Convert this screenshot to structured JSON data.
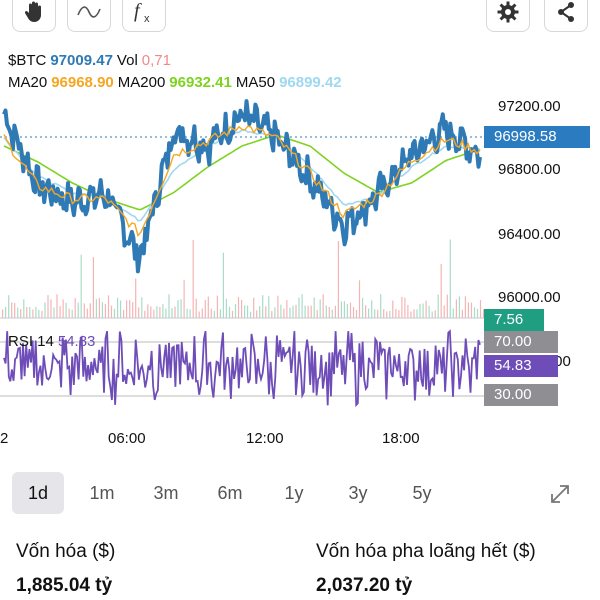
{
  "toolbar": {
    "left_icons": [
      "hand-pointer-icon",
      "curve-icon",
      "function-icon"
    ],
    "right_icons": [
      "gear-icon",
      "share-icon"
    ]
  },
  "legend": {
    "symbol": "$BTC",
    "price": "97009.47",
    "vol_label": "Vol",
    "vol_value": "0,71",
    "ma20_label": "MA20",
    "ma20_value": "96968.90",
    "ma200_label": "MA200",
    "ma200_value": "96932.41",
    "ma50_label": "MA50",
    "ma50_value": "96899.42",
    "rsi_label": "RSI 14",
    "rsi_value": "54.83"
  },
  "colors": {
    "price_line": "#2f7ab5",
    "ma20": "#f5a623",
    "ma200": "#7ed321",
    "ma50": "#9fd8f0",
    "vol": "#f08a8a",
    "rsi": "#6e4db8",
    "current_tag": "#2a7bbf",
    "vol_tag": "#1f9e82",
    "rsi_tag": "#6e4db8",
    "level_tag": "#8e8e93"
  },
  "price_axis": {
    "ticks": [
      "97200.00",
      "96800.00",
      "96400.00",
      "96000.00"
    ],
    "current_price": "96998.58",
    "current_vol": "7.56",
    "rsi_ticks": [
      "70.00",
      "30.00"
    ],
    "rsi_current": "54.83",
    "rsi_mid_tick_fragment": ".00"
  },
  "time_axis": [
    "2",
    "06:00",
    "12:00",
    "18:00"
  ],
  "ranges": {
    "items": [
      "1d",
      "1m",
      "3m",
      "6m",
      "1y",
      "3y",
      "5y"
    ],
    "active": "1d",
    "expand_icon": "expand-icon"
  },
  "stats": {
    "market_cap_label": "Vốn hóa ($)",
    "market_cap_value": "1,885.04 tỷ",
    "fdv_label": "Vốn hóa pha loãng hết ($)",
    "fdv_value": "2,037.20 tỷ"
  },
  "chart_data": {
    "type": "line",
    "title": "",
    "xlabel": "",
    "ylabel": "",
    "ylim": [
      96000,
      97200
    ],
    "x_ticks": [
      "06:00",
      "12:00",
      "18:00"
    ],
    "price_key_points": [
      {
        "t": "00:00",
        "v": 97150
      },
      {
        "t": "01:30",
        "v": 96700
      },
      {
        "t": "03:00",
        "v": 96600
      },
      {
        "t": "04:30",
        "v": 96650
      },
      {
        "t": "06:00",
        "v": 96250
      },
      {
        "t": "07:30",
        "v": 97050
      },
      {
        "t": "09:00",
        "v": 96950
      },
      {
        "t": "10:30",
        "v": 97150
      },
      {
        "t": "12:00",
        "v": 97000
      },
      {
        "t": "13:30",
        "v": 96750
      },
      {
        "t": "15:00",
        "v": 96450
      },
      {
        "t": "16:30",
        "v": 96650
      },
      {
        "t": "18:00",
        "v": 96900
      },
      {
        "t": "19:30",
        "v": 97050
      },
      {
        "t": "21:00",
        "v": 96900
      }
    ],
    "ma20_approx": [
      97000,
      96700,
      96620,
      96620,
      96400,
      96900,
      96980,
      97080,
      97000,
      96780,
      96520,
      96640,
      96860,
      96990,
      96920
    ],
    "ma50_approx": [
      97000,
      96760,
      96660,
      96630,
      96480,
      96800,
      96950,
      97050,
      97010,
      96820,
      96580,
      96640,
      96820,
      96950,
      96930
    ],
    "ma200_approx": [
      96950,
      96850,
      96720,
      96620,
      96550,
      96660,
      96820,
      96950,
      97020,
      96950,
      96780,
      96660,
      96720,
      96860,
      96930
    ],
    "rsi_level_lines": [
      70,
      30
    ],
    "rsi_current": 54.83
  }
}
